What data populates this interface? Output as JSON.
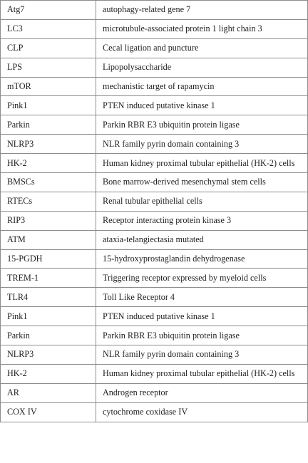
{
  "table": {
    "rows": [
      {
        "abbr": "Atg7",
        "definition": "autophagy-related gene 7"
      },
      {
        "abbr": "LC3",
        "definition": "microtubule-associated protein 1 light chain 3"
      },
      {
        "abbr": "CLP",
        "definition": "Cecal ligation and puncture"
      },
      {
        "abbr": "LPS",
        "definition": "Lipopolysaccharide"
      },
      {
        "abbr": "mTOR",
        "definition": "mechanistic target of rapamycin"
      },
      {
        "abbr": "Pink1",
        "definition": "PTEN induced putative kinase 1"
      },
      {
        "abbr": "Parkin",
        "definition": "Parkin RBR E3 ubiquitin protein ligase"
      },
      {
        "abbr": "NLRP3",
        "definition": "NLR family pyrin domain containing 3"
      },
      {
        "abbr": "HK-2",
        "definition": "Human kidney proximal tubular epithelial (HK-2) cells"
      },
      {
        "abbr": "BMSCs",
        "definition": "Bone marrow-derived mesenchymal stem cells"
      },
      {
        "abbr": "RTECs",
        "definition": "Renal tubular epithelial cells"
      },
      {
        "abbr": "RIP3",
        "definition": "Receptor interacting protein kinase 3"
      },
      {
        "abbr": "ATM",
        "definition": "ataxia-telangiectasia mutated"
      },
      {
        "abbr": "15-PGDH",
        "definition": "15-hydroxyprostaglandin dehydrogenase"
      },
      {
        "abbr": "TREM-1",
        "definition": "Triggering receptor expressed by myeloid cells"
      },
      {
        "abbr": "TLR4",
        "definition": "Toll Like Receptor 4"
      },
      {
        "abbr": "Pink1",
        "definition": "PTEN induced putative kinase 1"
      },
      {
        "abbr": "Parkin",
        "definition": "Parkin RBR E3 ubiquitin protein ligase"
      },
      {
        "abbr": "NLRP3",
        "definition": "NLR family pyrin domain containing 3"
      },
      {
        "abbr": "HK-2",
        "definition": "Human kidney proximal tubular epithelial (HK-2) cells"
      },
      {
        "abbr": "AR",
        "definition": "Androgen receptor"
      },
      {
        "abbr": "COX IV",
        "definition": "cytochrome coxidase IV"
      }
    ]
  }
}
